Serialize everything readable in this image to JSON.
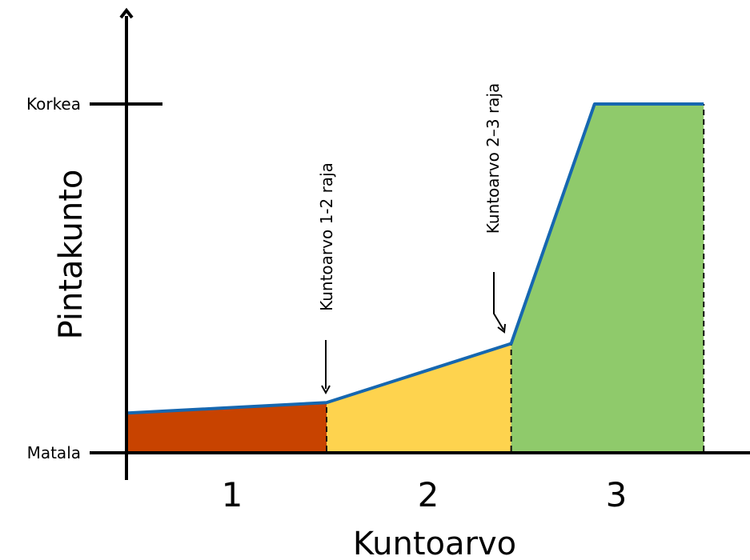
{
  "chart_data": {
    "type": "area",
    "xlabel": "Kuntoarvo",
    "ylabel": "Pintakunto",
    "y_ticks": [
      "Matala",
      "Korkea"
    ],
    "categories": [
      "1",
      "2",
      "3"
    ],
    "annotations": [
      "Kuntoarvo 1-2 raja",
      "Kuntoarvo 2–3 raja"
    ],
    "profile": [
      {
        "x": 0,
        "y": 0.11
      },
      {
        "x": 1,
        "y": 0.14
      },
      {
        "x": 1.93,
        "y": 0.31
      },
      {
        "x": 2.35,
        "y": 1.0
      },
      {
        "x": 2.9,
        "y": 1.0
      }
    ],
    "bands": [
      {
        "label": "1",
        "from": 0,
        "to": 1,
        "color": "#c84300"
      },
      {
        "label": "2",
        "from": 1,
        "to": 1.93,
        "color": "#fed34e"
      },
      {
        "label": "3",
        "from": 1.93,
        "to": 2.9,
        "color": "#8fca6b"
      }
    ],
    "line_color": "#1667b0",
    "grid": false,
    "legend": "none"
  }
}
